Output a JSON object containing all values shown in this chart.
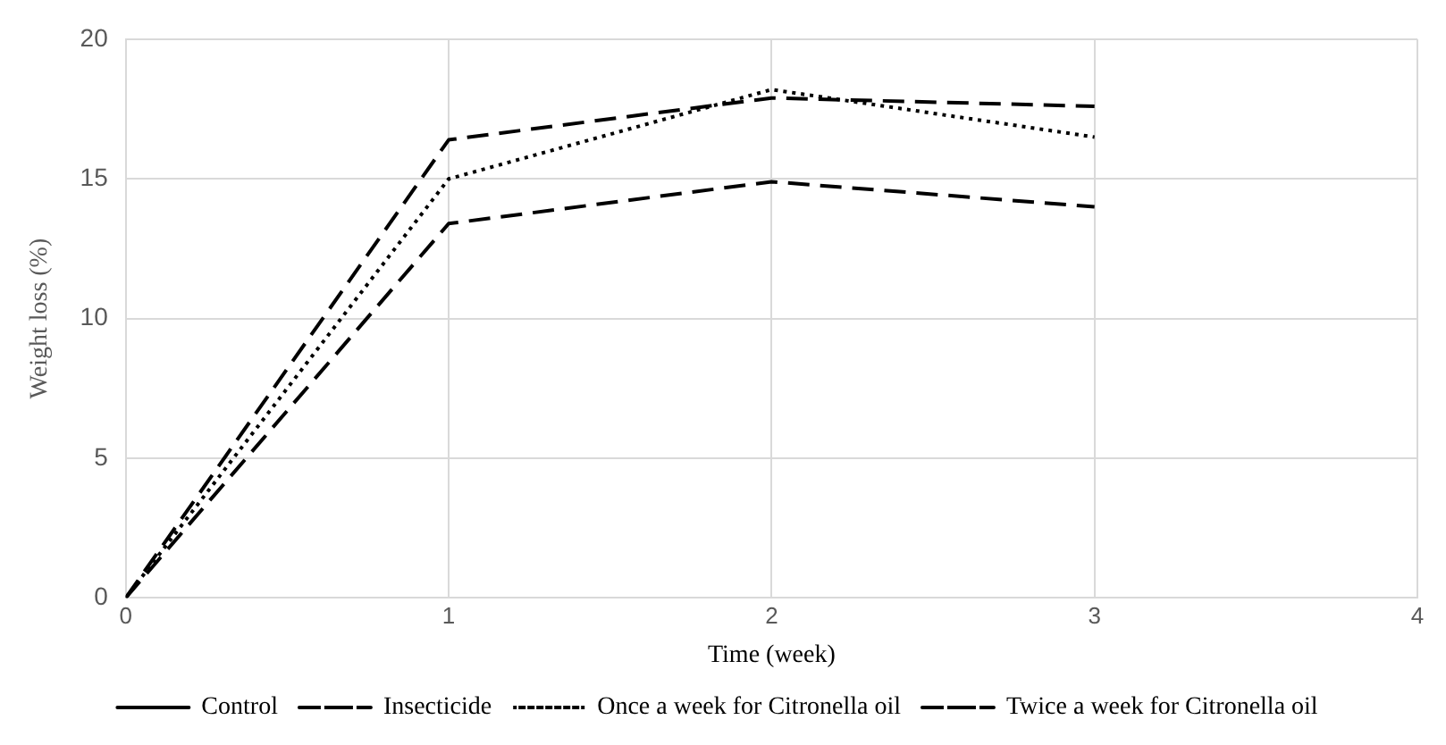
{
  "chart_data": {
    "type": "line",
    "xlabel": "Time (week)",
    "ylabel": "Weight loss (%)",
    "x": [
      0,
      1,
      2,
      3
    ],
    "xlim": [
      0,
      4
    ],
    "xticks": [
      0,
      1,
      2,
      3,
      4
    ],
    "ylim": [
      0,
      20
    ],
    "yticks": [
      0,
      5,
      10,
      15,
      20
    ],
    "grid": true,
    "legend": "bottom",
    "marker": "none",
    "series": [
      {
        "name": "Control",
        "color": "#000000",
        "line_style": "solid",
        "values": [
          null,
          null,
          null,
          null
        ]
      },
      {
        "name": "Insecticide",
        "color": "#000000",
        "line_style": "dashed",
        "values": [
          0,
          16.4,
          17.9,
          17.6
        ]
      },
      {
        "name": "Once a week for Citronella oil",
        "color": "#000000",
        "line_style": "dotted",
        "values": [
          0,
          15,
          18.2,
          16.5
        ]
      },
      {
        "name": "Twice a week for Citronella oil",
        "color": "#000000",
        "line_style": "dashed",
        "values": [
          0,
          13.4,
          14.9,
          14.0
        ]
      }
    ]
  }
}
